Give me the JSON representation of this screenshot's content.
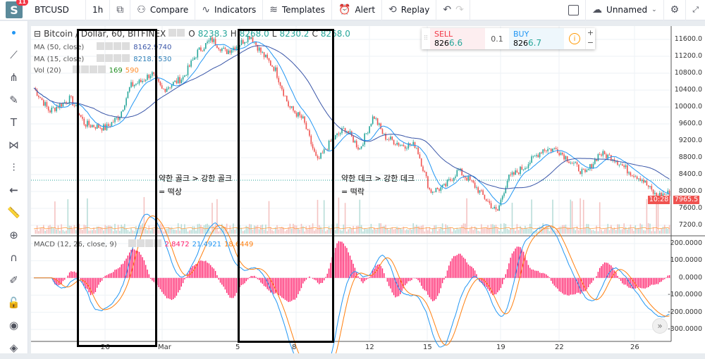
{
  "topbar": {
    "logo": "S",
    "notifications": "11",
    "symbol": "BTCUSD",
    "interval": "1h",
    "compare": "Compare",
    "indicators": "Indicators",
    "templates": "Templates",
    "alert": "Alert",
    "replay": "Replay",
    "layout_name": "Unnamed"
  },
  "left_toolbar": [
    "dot-icon",
    "trendline-icon",
    "fork-icon",
    "brush-icon",
    "text-icon",
    "pattern-icon",
    "measure-icon",
    "arrow-left-icon",
    "ruler-icon",
    "zoom-icon",
    "magnet-icon",
    "lock-drawings-icon",
    "lock-icon",
    "eye-icon",
    "layers-icon"
  ],
  "legend": {
    "title": "Bitcoin / Dollar, 60, BITFINEX",
    "o_label": "O",
    "o": "8238.3",
    "h_label": "H",
    "h": "8268.0",
    "l_label": "L",
    "l": "8230.2",
    "c_label": "C",
    "c": "8268.0",
    "ma50": {
      "label": "MA (50, close)",
      "value": "8162.9740"
    },
    "ma15": {
      "label": "MA (15, close)",
      "value": "8218.7530"
    },
    "vol": {
      "label": "Vol (20)",
      "v1": "169",
      "v2": "590"
    },
    "macd": {
      "label": "MACD (12, 26, close, 9)",
      "hist": "2.8472",
      "macd": "21.4921",
      "signal": "18.6449"
    }
  },
  "trade": {
    "sell_label": "SELL",
    "sell_price_a": "826",
    "sell_price_b": "6.6",
    "spread": "0.1",
    "buy_label": "BUY",
    "buy_price_a": "826",
    "buy_price_b": "6.7"
  },
  "price_axis": [
    "11600.0",
    "11200.0",
    "10800.0",
    "10400.0",
    "10000.0",
    "9600.0",
    "9200.0",
    "8800.0",
    "8400.0",
    "8000.0",
    "7600.0",
    "7200.0"
  ],
  "macd_axis": [
    "200.0000",
    "100.0000",
    "0.0000",
    "-100.0000",
    "-200.0000",
    "-300.0000"
  ],
  "last_price": "7965.5",
  "countdown": "10:28",
  "time_axis": [
    "26",
    "Mar",
    "5",
    "8",
    "12",
    "15",
    "19",
    "22",
    "26"
  ],
  "annotations": {
    "a1_line1": "약한 골크 > 강한 골크",
    "a1_line2": "= 떡상",
    "a2_line1": "약한 데크 > 강한 데크",
    "a2_line2": "= 떡락"
  },
  "colors": {
    "up": "#26a69a",
    "down": "#ef5350",
    "ma50": "#3a56a8",
    "ma15": "#2196f3",
    "macd": "#2196f3",
    "signal": "#ff7f0e",
    "hist": "#ff1f6b"
  },
  "price_path": [
    [
      50,
      10400
    ],
    [
      70,
      9900
    ],
    [
      100,
      10200
    ],
    [
      120,
      9600
    ],
    [
      150,
      9500
    ],
    [
      170,
      9800
    ],
    [
      185,
      10500
    ],
    [
      200,
      10600
    ],
    [
      215,
      10800
    ],
    [
      230,
      10400
    ],
    [
      260,
      10700
    ],
    [
      280,
      11300
    ],
    [
      300,
      11600
    ],
    [
      320,
      11300
    ],
    [
      340,
      11500
    ],
    [
      355,
      11700
    ],
    [
      370,
      11300
    ],
    [
      390,
      10900
    ],
    [
      410,
      10000
    ],
    [
      430,
      9700
    ],
    [
      450,
      8700
    ],
    [
      470,
      9200
    ],
    [
      490,
      9500
    ],
    [
      510,
      9000
    ],
    [
      530,
      9800
    ],
    [
      545,
      9300
    ],
    [
      570,
      9100
    ],
    [
      590,
      9100
    ],
    [
      610,
      8000
    ],
    [
      630,
      8100
    ],
    [
      650,
      8500
    ],
    [
      670,
      8200
    ],
    [
      690,
      7800
    ],
    [
      705,
      7500
    ],
    [
      720,
      8300
    ],
    [
      745,
      8600
    ],
    [
      770,
      9000
    ],
    [
      790,
      9000
    ],
    [
      810,
      8700
    ],
    [
      830,
      8400
    ],
    [
      850,
      8900
    ],
    [
      870,
      8800
    ],
    [
      890,
      8500
    ],
    [
      910,
      8300
    ],
    [
      930,
      7900
    ],
    [
      950,
      7960
    ]
  ]
}
